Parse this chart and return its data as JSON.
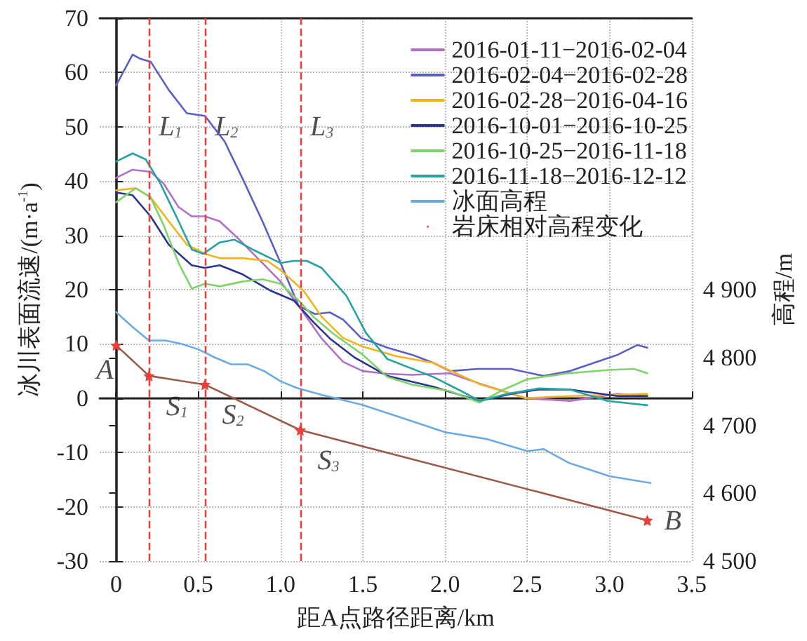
{
  "chart_data": {
    "type": "line",
    "xlabel": "距A点路径距离/km",
    "ylabel": "冰川表面流速/(m·a$^{-1}$)",
    "y2label": "高程/m",
    "xlim": [
      -0.1,
      3.5
    ],
    "xticks": [
      0,
      0.5,
      {
        "value": 1,
        "label": "1.0"
      },
      1.5,
      {
        "value": 2,
        "label": "2.0"
      },
      2.5,
      {
        "value": 3,
        "label": "3.0"
      },
      3.5
    ],
    "ylim": [
      -30,
      70
    ],
    "yticks": [
      -30,
      -20,
      -10,
      0,
      10,
      20,
      30,
      40,
      50,
      60,
      70
    ],
    "y2lim": [
      4500,
      5300
    ],
    "y2ticks": [
      {
        "value": 4500,
        "label": "4 500"
      },
      {
        "value": 4600,
        "label": "4 600"
      },
      {
        "value": 4700,
        "label": "4 700"
      },
      {
        "value": 4800,
        "label": "4 800"
      },
      {
        "value": 4900,
        "label": "4 900"
      }
    ],
    "grid": true,
    "legend": "top right",
    "line_style": "solid",
    "marker": "none",
    "series": [
      {
        "name": "2016-01-11−2016-02-04",
        "color": "#b070c8",
        "x": [
          0,
          0.1,
          0.21,
          0.29,
          0.38,
          0.46,
          0.54,
          0.63,
          0.75,
          0.89,
          1.0,
          1.11,
          1.25,
          1.38,
          1.5,
          1.65,
          1.8,
          2.03,
          2.2,
          2.49,
          2.76,
          3.05,
          3.23
        ],
        "values": [
          40.6,
          42.1,
          41.7,
          39.5,
          35.2,
          33.5,
          33.5,
          32.6,
          29.2,
          24.9,
          21.5,
          17,
          11,
          6.7,
          5,
          4.5,
          4.3,
          4.6,
          2.8,
          0,
          -0.5,
          0.8,
          0.4
        ]
      },
      {
        "name": "2016-02-04−2016-02-28",
        "color": "#5a5ec8",
        "x": [
          0,
          0.1,
          0.15,
          0.21,
          0.32,
          0.43,
          0.54,
          0.66,
          0.77,
          0.89,
          1.0,
          1.11,
          1.21,
          1.3,
          1.38,
          1.49,
          1.65,
          1.8,
          1.93,
          2.03,
          2.2,
          2.4,
          2.6,
          2.76,
          3.05,
          3.17,
          3.23
        ],
        "values": [
          57.6,
          63.3,
          62.5,
          62,
          56.8,
          52.5,
          52,
          47.3,
          40.4,
          32.6,
          24.9,
          17,
          15.5,
          15.8,
          14.5,
          11.1,
          9.3,
          8,
          6.5,
          5,
          5.4,
          5.4,
          4.1,
          5,
          8,
          9.8,
          9.3
        ]
      },
      {
        "name": "2016-02-28−2016-04-16",
        "color": "#f5b31a",
        "x": [
          0,
          0.12,
          0.21,
          0.32,
          0.43,
          0.54,
          0.63,
          0.77,
          0.92,
          1.0,
          1.14,
          1.25,
          1.38,
          1.5,
          1.71,
          1.93,
          2.21,
          2.49,
          2.76,
          3.0,
          3.23
        ],
        "values": [
          38.3,
          38.7,
          37,
          32.6,
          28.3,
          26.6,
          25.8,
          25.8,
          25.3,
          23.6,
          19.8,
          15,
          11.1,
          9.5,
          7.7,
          6.5,
          2.6,
          0,
          0.4,
          0.6,
          0.8
        ]
      },
      {
        "name": "2016-10-01−2016-10-25",
        "color": "#2b3590",
        "x": [
          0,
          0.1,
          0.21,
          0.32,
          0.46,
          0.54,
          0.63,
          0.77,
          0.94,
          1.08,
          1.2,
          1.3,
          1.45,
          1.65,
          1.93,
          2.21,
          2.4,
          2.57,
          2.76,
          3.05,
          3.23
        ],
        "values": [
          37.9,
          37.4,
          33.5,
          28.3,
          24.5,
          24,
          24.5,
          22.8,
          19.8,
          18,
          14,
          11,
          7.5,
          4.1,
          2.1,
          -0.5,
          0.8,
          1.6,
          1.6,
          0.4,
          0.4
        ]
      },
      {
        "name": "2016-10-25−2016-11-18",
        "color": "#7ed36a",
        "x": [
          0,
          0.12,
          0.21,
          0.29,
          0.38,
          0.46,
          0.54,
          0.63,
          0.77,
          0.89,
          1.0,
          1.11,
          1.2,
          1.32,
          1.5,
          1.65,
          1.8,
          2.03,
          2.21,
          2.35,
          2.5,
          2.75,
          3.0,
          3.15,
          3.23
        ],
        "values": [
          36.1,
          38.7,
          37,
          31.8,
          24.9,
          20.2,
          21.1,
          20.6,
          21.5,
          21.9,
          21.1,
          18,
          15,
          11.9,
          8,
          3.9,
          2.5,
          1.3,
          -0.8,
          1.5,
          3.5,
          4.6,
          5.2,
          5.4,
          4.6
        ]
      },
      {
        "name": "2016-11-18−2016-12-12",
        "color": "#25a3a0",
        "x": [
          0,
          0.1,
          0.18,
          0.27,
          0.38,
          0.46,
          0.53,
          0.63,
          0.72,
          0.83,
          1.0,
          1.08,
          1.16,
          1.25,
          1.4,
          1.52,
          1.65,
          1.93,
          2.1,
          2.21,
          2.38,
          2.57,
          2.76,
          2.99,
          3.23
        ],
        "values": [
          43.6,
          45.1,
          44,
          39.5,
          32.6,
          27.4,
          26.6,
          28.7,
          29.2,
          27.4,
          24.9,
          25.3,
          25.3,
          24,
          18.9,
          12,
          7.2,
          3.9,
          1.3,
          -0.5,
          0.8,
          1.8,
          1.6,
          -0.5,
          -1.3
        ]
      },
      {
        "name": "冰面高程",
        "color": "#6aaae0",
        "axis": "y2",
        "x": [
          0,
          0.1,
          0.2,
          0.3,
          0.4,
          0.5,
          0.6,
          0.7,
          0.8,
          0.9,
          1.0,
          1.1,
          1.25,
          1.5,
          1.75,
          2.0,
          2.25,
          2.5,
          2.6,
          2.75,
          3.0,
          3.25
        ],
        "values": [
          4867,
          4845,
          4825,
          4825,
          4820,
          4812,
          4800,
          4790,
          4790,
          4780,
          4765,
          4755,
          4745,
          4730,
          4710,
          4690,
          4680,
          4662,
          4665,
          4645,
          4625,
          4615
        ]
      },
      {
        "name": "岩床相对高程变化",
        "color": "#9a5a4a",
        "axis": "y2",
        "marker": "star",
        "x": [
          0,
          0.2,
          0.54,
          1.12,
          3.23
        ],
        "values": [
          4818,
          4773,
          4760,
          4693,
          4560
        ]
      }
    ],
    "ref_lines": [
      {
        "axis": "x",
        "value": 0.2,
        "label": "L$_{1}$",
        "color": "#e8413c",
        "line_style": "dashed"
      },
      {
        "axis": "x",
        "value": 0.54,
        "label": "L$_{2}$",
        "color": "#e8413c",
        "line_style": "dashed"
      },
      {
        "axis": "x",
        "value": 1.12,
        "label": "L$_{3}$",
        "color": "#e8413c",
        "line_style": "dashed"
      }
    ],
    "annotations": [
      {
        "text": "A",
        "x": 0,
        "y": 9.8
      },
      {
        "text": "S$_{1}$",
        "x": 0.2,
        "y": 4.1
      },
      {
        "text": "S$_{2}$",
        "x": 0.54,
        "y": 2.6
      },
      {
        "text": "S$_{3}$",
        "x": 1.12,
        "y": -5.9
      },
      {
        "text": "B",
        "x": 3.23,
        "y": -22.7
      }
    ]
  }
}
